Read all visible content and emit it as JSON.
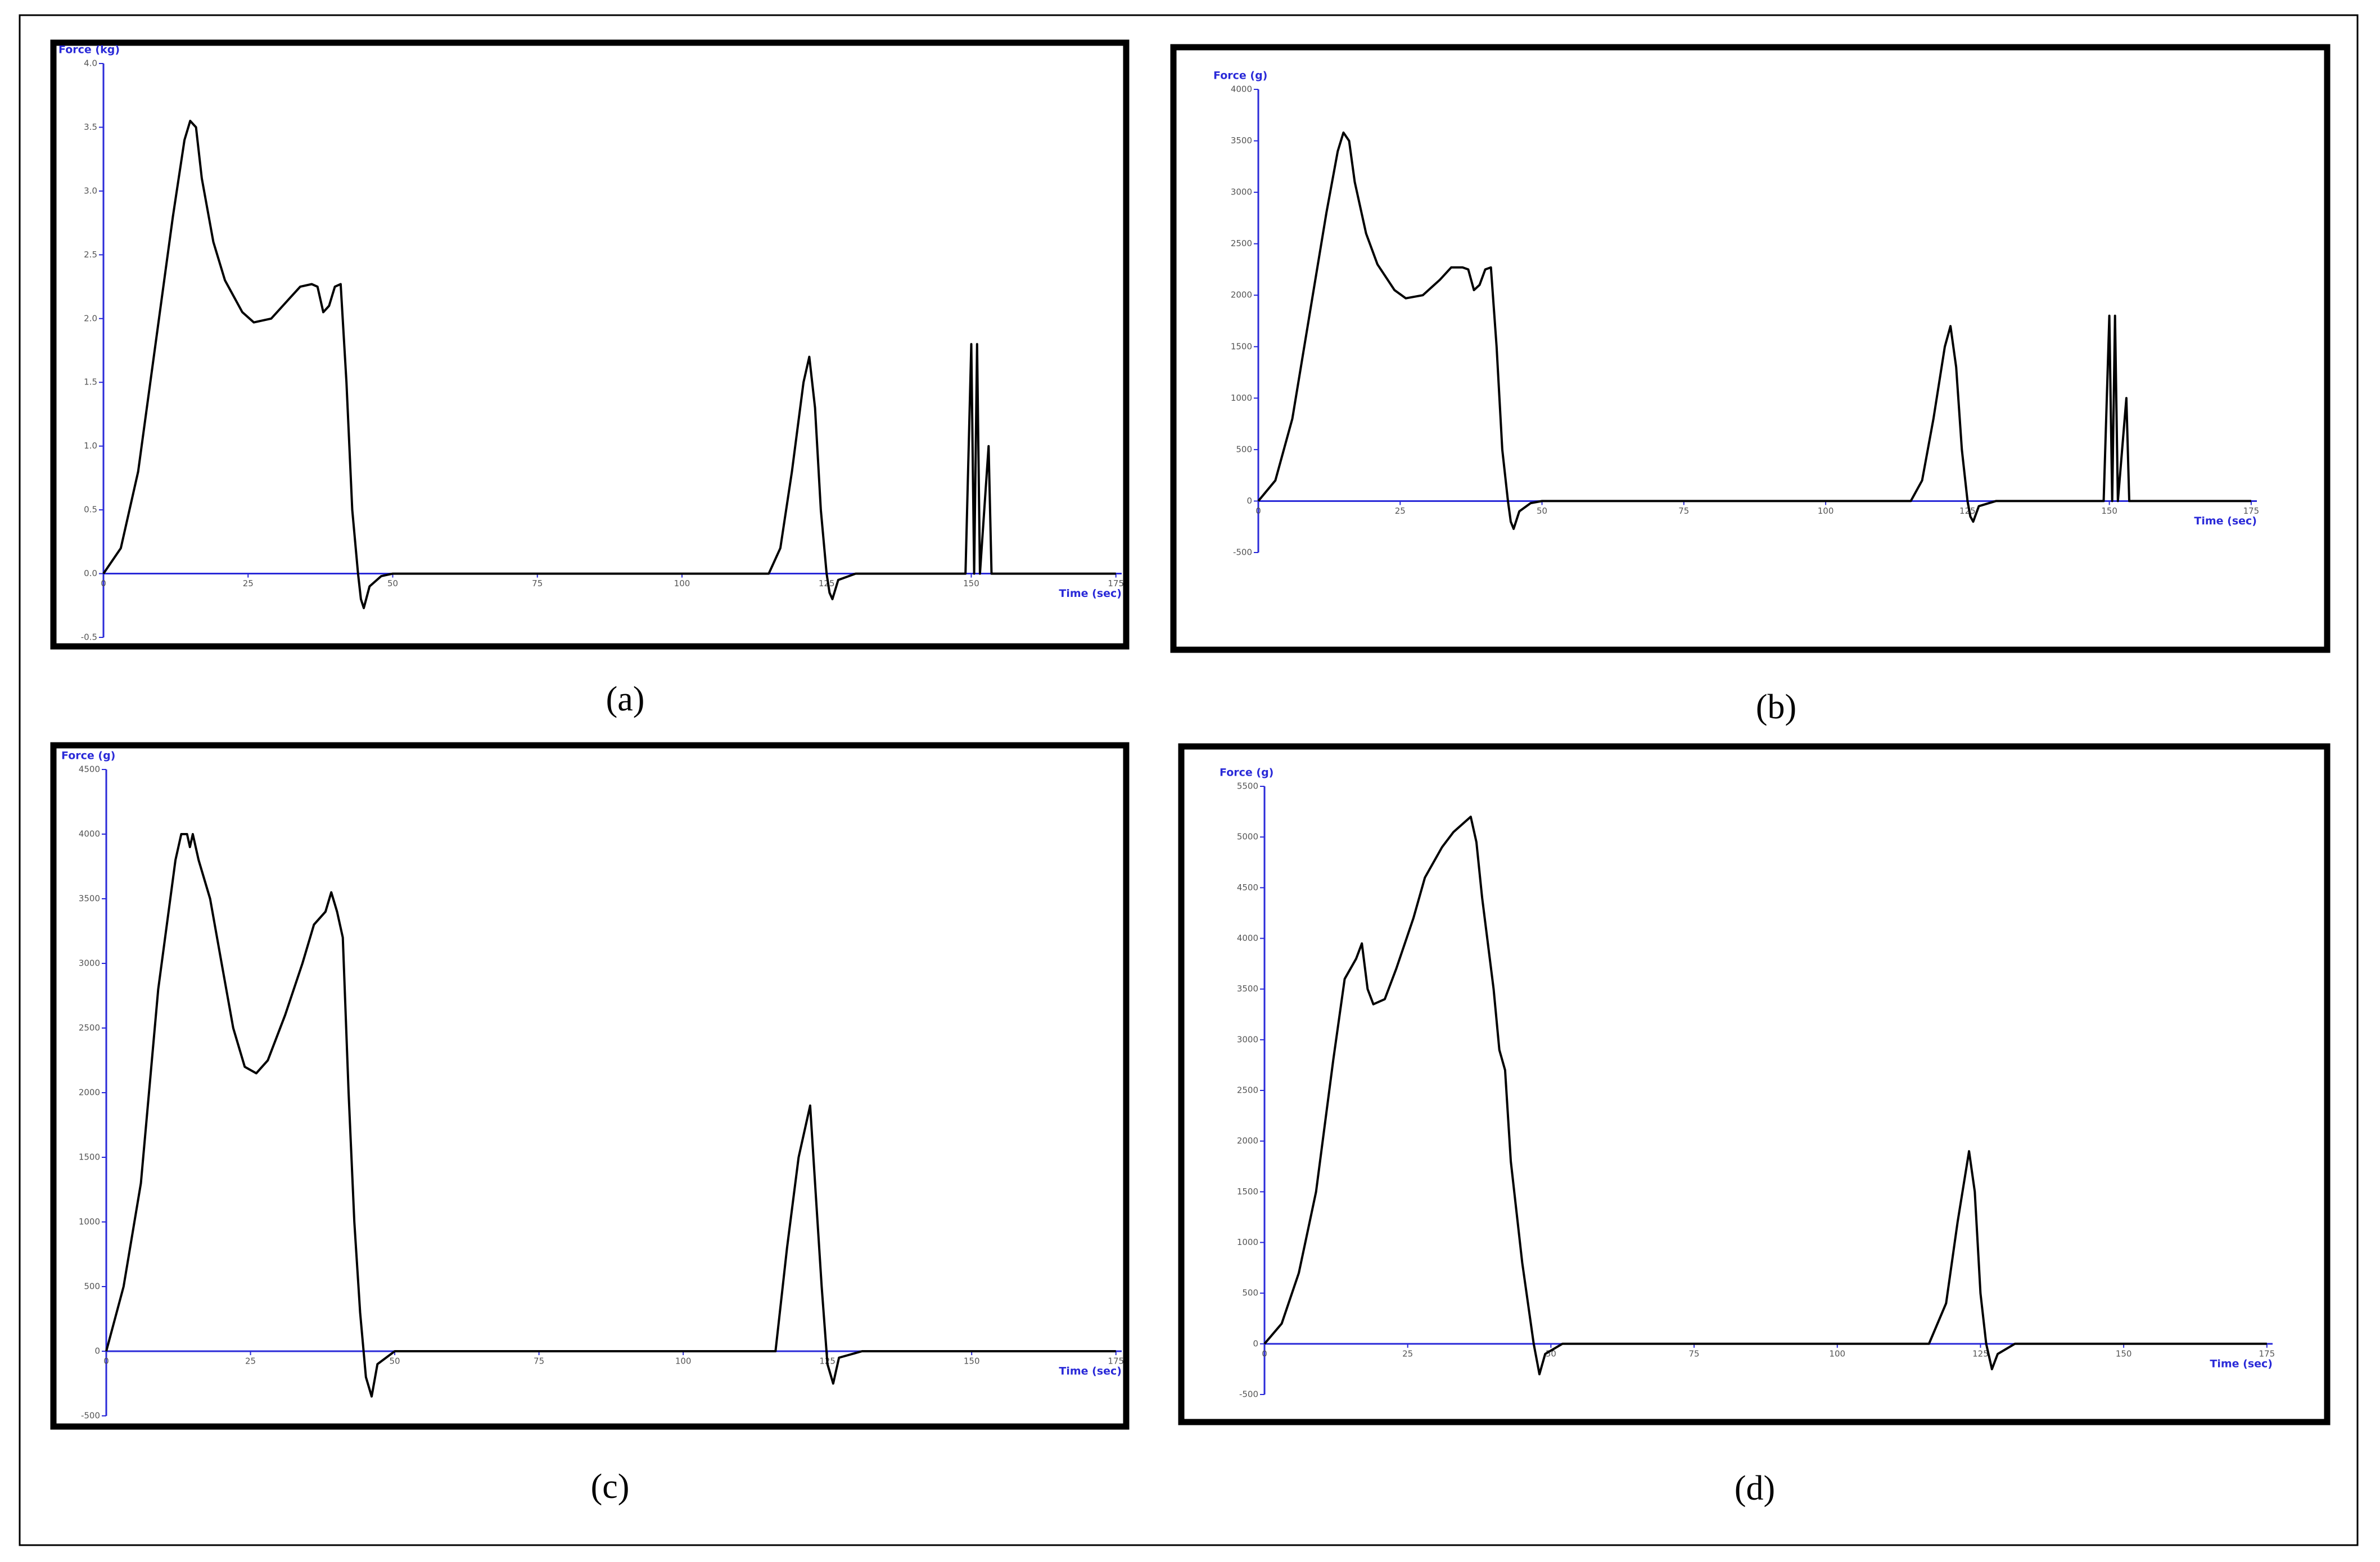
{
  "chart_data": [
    {
      "type": "line",
      "caption": "(a)",
      "y_label": "Force (kg)",
      "x_label": "Time (sec)",
      "axis_color": "#2a2ad8",
      "color": "#000000",
      "xlim": [
        0,
        176
      ],
      "xticks": [
        0,
        25,
        50,
        75,
        100,
        125,
        150,
        175
      ],
      "ylim": [
        -0.5,
        4.0
      ],
      "yticks": [
        {
          "value": 4,
          "label": "4.0"
        },
        3.5,
        {
          "value": 3,
          "label": "3.0"
        },
        2.5,
        {
          "value": 2,
          "label": "2.0"
        },
        1.5,
        {
          "value": 1,
          "label": "1.0"
        },
        0.5,
        {
          "value": 0,
          "label": "0.0"
        },
        -0.5
      ],
      "x": [
        0,
        3,
        6,
        9,
        12,
        14,
        15,
        16,
        17,
        19,
        21,
        24,
        26,
        29,
        32,
        34,
        36,
        37,
        38,
        39,
        40,
        41,
        42,
        43,
        44,
        44.5,
        45,
        46,
        48,
        50,
        115,
        117,
        119,
        121,
        122,
        123,
        124,
        125,
        125.5,
        126,
        127,
        130,
        149,
        150,
        150.5,
        151,
        151.5,
        153,
        153.5,
        175
      ],
      "values": [
        0,
        0.2,
        0.8,
        1.8,
        2.8,
        3.4,
        3.55,
        3.5,
        3.1,
        2.6,
        2.3,
        2.05,
        1.97,
        2.0,
        2.15,
        2.25,
        2.27,
        2.25,
        2.05,
        2.1,
        2.25,
        2.27,
        1.5,
        0.5,
        0,
        -0.2,
        -0.27,
        -0.1,
        -0.02,
        0,
        0,
        0.2,
        0.8,
        1.5,
        1.7,
        1.3,
        0.5,
        0,
        -0.15,
        -0.2,
        -0.05,
        0,
        0,
        1.8,
        0,
        1.8,
        0,
        1.0,
        0,
        0
      ]
    },
    {
      "type": "line",
      "caption": "(b)",
      "y_label": "Force (g)",
      "x_label": "Time (sec)",
      "axis_color": "#2a2ad8",
      "color": "#000000",
      "xlim": [
        0,
        176
      ],
      "xticks": [
        0,
        25,
        50,
        75,
        100,
        125,
        150,
        175
      ],
      "ylim": [
        -500,
        4000
      ],
      "yticks": [
        4000,
        3500,
        3000,
        2500,
        2000,
        1500,
        1000,
        500,
        0,
        -500
      ],
      "x": [
        0,
        3,
        6,
        9,
        12,
        14,
        15,
        16,
        17,
        19,
        21,
        24,
        26,
        29,
        32,
        34,
        36,
        37,
        38,
        39,
        40,
        41,
        42,
        43,
        44,
        44.5,
        45,
        46,
        48,
        50,
        115,
        117,
        119,
        121,
        122,
        123,
        124,
        125,
        125.5,
        126,
        127,
        130,
        149,
        150,
        150.5,
        151,
        151.5,
        153,
        153.5,
        175
      ],
      "values": [
        0,
        200,
        800,
        1800,
        2800,
        3400,
        3580,
        3500,
        3100,
        2600,
        2300,
        2050,
        1970,
        2000,
        2150,
        2270,
        2270,
        2250,
        2050,
        2100,
        2250,
        2270,
        1500,
        500,
        0,
        -200,
        -270,
        -100,
        -20,
        0,
        0,
        200,
        800,
        1500,
        1700,
        1300,
        500,
        0,
        -150,
        -200,
        -50,
        0,
        0,
        1800,
        0,
        1800,
        0,
        1000,
        0,
        0
      ]
    },
    {
      "type": "line",
      "caption": "(c)",
      "y_label": "Force (g)",
      "x_label": "Time (sec)",
      "axis_color": "#2a2ad8",
      "color": "#000000",
      "xlim": [
        0,
        176
      ],
      "xticks": [
        0,
        25,
        50,
        75,
        100,
        125,
        150,
        175
      ],
      "ylim": [
        -500,
        4500
      ],
      "yticks": [
        4500,
        4000,
        3500,
        3000,
        2500,
        2000,
        1500,
        1000,
        500,
        0,
        -500
      ],
      "x": [
        0,
        3,
        6,
        9,
        12,
        13,
        14,
        14.5,
        15,
        16,
        18,
        20,
        22,
        24,
        26,
        28,
        31,
        34,
        36,
        38,
        39,
        40,
        41,
        42,
        43,
        44,
        45,
        46,
        47,
        50,
        116,
        118,
        120,
        122,
        123,
        124,
        125,
        126,
        127,
        131,
        175
      ],
      "values": [
        0,
        500,
        1300,
        2800,
        3800,
        4000,
        4000,
        3900,
        4000,
        3800,
        3500,
        3000,
        2500,
        2200,
        2150,
        2250,
        2600,
        3000,
        3300,
        3400,
        3550,
        3400,
        3200,
        2000,
        1000,
        300,
        -200,
        -350,
        -100,
        0,
        0,
        800,
        1500,
        1900,
        1200,
        500,
        -100,
        -250,
        -50,
        0,
        0
      ]
    },
    {
      "type": "line",
      "caption": "(d)",
      "y_label": "Force (g)",
      "x_label": "Time (sec)",
      "axis_color": "#2a2ad8",
      "color": "#000000",
      "xlim": [
        0,
        176
      ],
      "xticks": [
        0,
        25,
        50,
        75,
        100,
        125,
        150,
        175
      ],
      "ylim": [
        -500,
        5500
      ],
      "yticks": [
        5500,
        5000,
        4500,
        4000,
        3500,
        3000,
        2500,
        2000,
        1500,
        1000,
        500,
        0,
        -500
      ],
      "x": [
        0,
        3,
        6,
        9,
        12,
        14,
        16,
        17,
        18,
        19,
        21,
        23,
        26,
        28,
        31,
        33,
        35,
        36,
        37,
        38,
        40,
        41,
        42,
        43,
        45,
        47,
        48,
        49,
        52,
        116,
        119,
        121,
        123,
        124,
        125,
        126,
        127,
        128,
        131,
        175
      ],
      "values": [
        0,
        200,
        700,
        1500,
        2800,
        3600,
        3800,
        3950,
        3500,
        3350,
        3400,
        3700,
        4200,
        4600,
        4900,
        5050,
        5150,
        5200,
        4950,
        4400,
        3500,
        2900,
        2700,
        1800,
        800,
        0,
        -300,
        -100,
        0,
        0,
        400,
        1200,
        1900,
        1500,
        500,
        0,
        -250,
        -100,
        0,
        0
      ]
    }
  ]
}
